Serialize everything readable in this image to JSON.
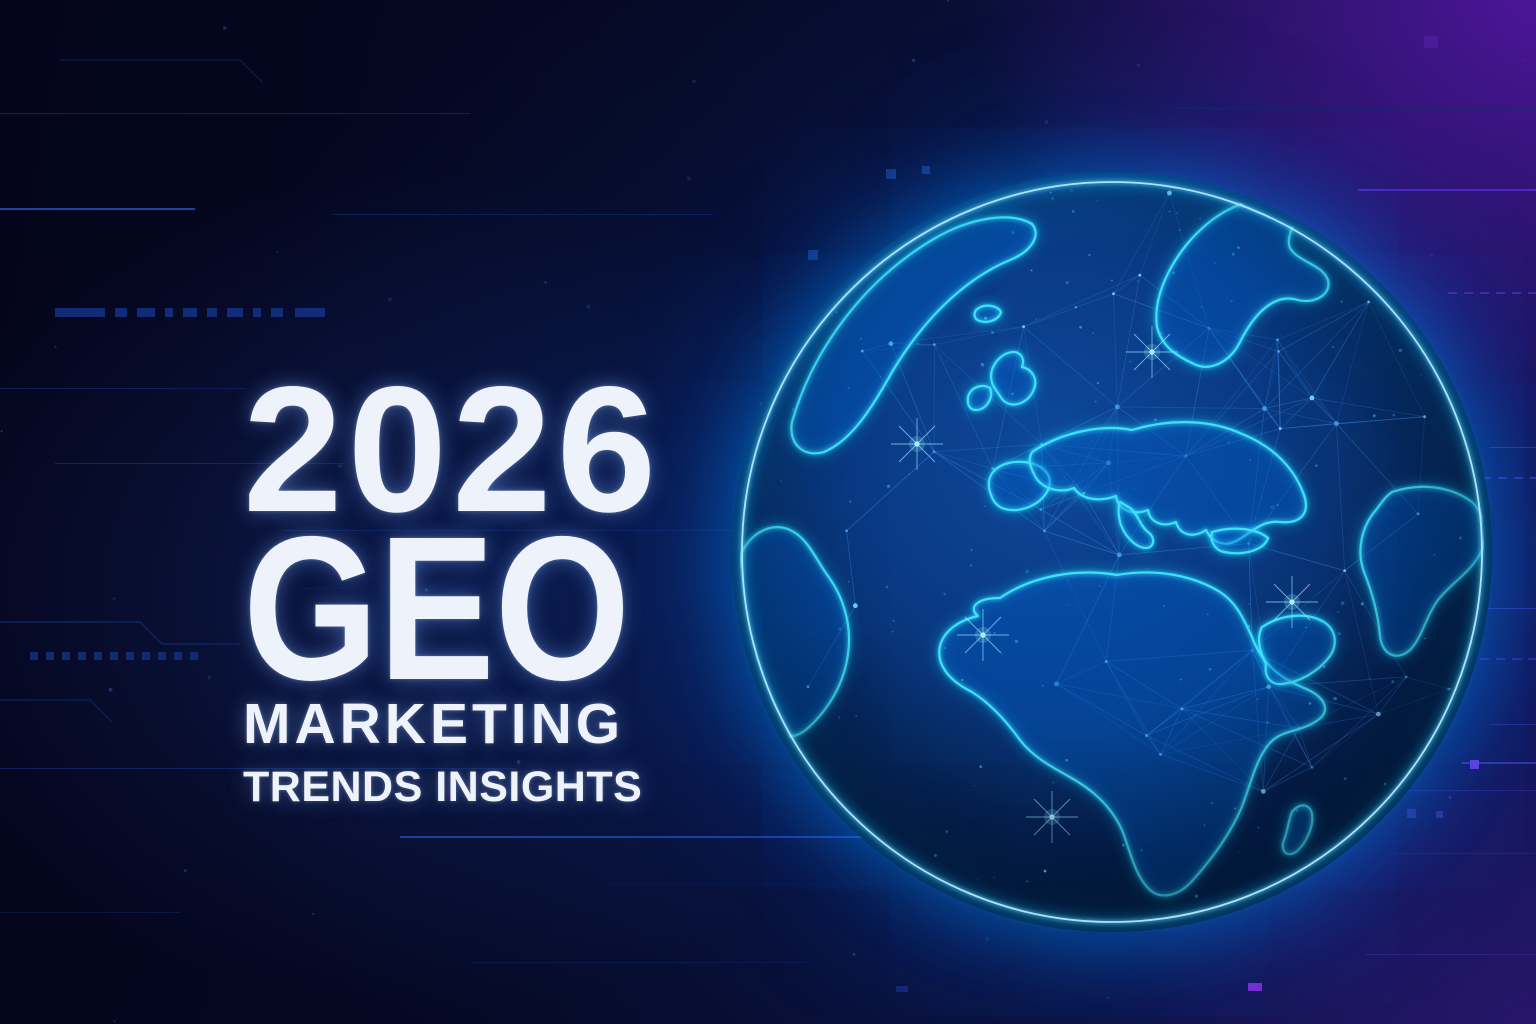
{
  "banner": {
    "year": "2026",
    "headline": "GEO",
    "subline1": "MARKETING",
    "subline2": "TRENDS INSIGHTS"
  },
  "colors": {
    "background_navy": "#050a26",
    "accent_purple": "#4a1390",
    "globe_outline_cyan": "#3ae2ff",
    "mesh_blue": "#2f80d9",
    "text_white": "#eef3fb"
  },
  "icons": {
    "globe": "globe-network-graphic"
  }
}
